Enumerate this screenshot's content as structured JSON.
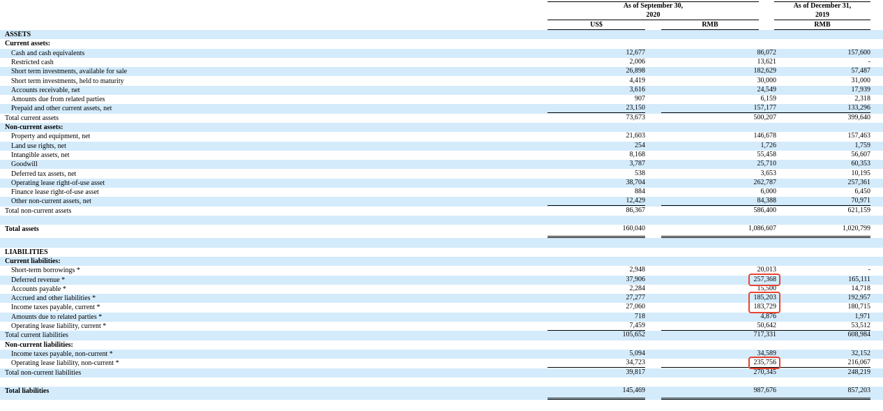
{
  "header": {
    "period1_title": "As of September 30,",
    "period1_year": "2020",
    "period1_col1": "US$",
    "period1_col2": "RMB",
    "period2_title": "As of December 31,",
    "period2_year": "2019",
    "period2_col1": "RMB"
  },
  "sections": [
    {
      "title": "ASSETS",
      "groups": [
        {
          "title": "Current assets:",
          "items": [
            {
              "label": "Cash and cash equivalents",
              "values": [
                "12,677",
                "86,072",
                "157,600"
              ]
            },
            {
              "label": "Restricted cash",
              "values": [
                "2,006",
                "13,621",
                "-"
              ]
            },
            {
              "label": "Short term investments, available for sale",
              "values": [
                "26,898",
                "182,629",
                "57,487"
              ]
            },
            {
              "label": "Short term investments, held to maturity",
              "values": [
                "4,419",
                "30,000",
                "31,000"
              ]
            },
            {
              "label": "Accounts receivable, net",
              "values": [
                "3,616",
                "24,549",
                "17,939"
              ]
            },
            {
              "label": "Amounts due from related parties",
              "values": [
                "907",
                "6,159",
                "2,318"
              ]
            },
            {
              "label": "Prepaid and other current assets, net",
              "values": [
                "23,150",
                "157,177",
                "133,296"
              ]
            }
          ],
          "total": {
            "label": "Total current assets",
            "values": [
              "73,673",
              "500,207",
              "399,640"
            ]
          }
        },
        {
          "title": "Non-current assets:",
          "items": [
            {
              "label": "Property and equipment, net",
              "values": [
                "21,603",
                "146,678",
                "157,463"
              ]
            },
            {
              "label": "Land use rights, net",
              "values": [
                "254",
                "1,726",
                "1,759"
              ]
            },
            {
              "label": "Intangible assets, net",
              "values": [
                "8,168",
                "55,458",
                "56,607"
              ]
            },
            {
              "label": "Goodwill",
              "values": [
                "3,787",
                "25,710",
                "60,353"
              ]
            },
            {
              "label": "Deferred tax assets, net",
              "values": [
                "538",
                "3,653",
                "10,195"
              ]
            },
            {
              "label": "Operating lease right-of-use asset",
              "values": [
                "38,704",
                "262,787",
                "257,361"
              ]
            },
            {
              "label": "Finance lease right-of-use asset",
              "values": [
                "884",
                "6,000",
                "6,450"
              ]
            },
            {
              "label": "Other non-current assets, net",
              "values": [
                "12,429",
                "84,388",
                "70,971"
              ]
            }
          ],
          "total": {
            "label": "Total non-current assets",
            "values": [
              "86,367",
              "586,400",
              "621,159"
            ]
          }
        }
      ],
      "grand_total": {
        "label": "Total assets",
        "values": [
          "160,040",
          "1,086,607",
          "1,020,799"
        ]
      }
    },
    {
      "title": "LIABILITIES",
      "groups": [
        {
          "title": "Current liabilities:",
          "items": [
            {
              "label": "Short-term borrowings *",
              "values": [
                "2,948",
                "20,013",
                "-"
              ]
            },
            {
              "label": "Deferred revenue *",
              "values": [
                "37,906",
                "257,368",
                "165,111"
              ]
            },
            {
              "label": "Accounts payable *",
              "values": [
                "2,284",
                "15,500",
                "14,718"
              ]
            },
            {
              "label": "Accrued and other liabilities *",
              "values": [
                "27,277",
                "185,203",
                "192,957"
              ]
            },
            {
              "label": "Income taxes payable, current *",
              "values": [
                "27,060",
                "183,729",
                "180,715"
              ]
            },
            {
              "label": "Amounts due to related parties *",
              "values": [
                "718",
                "4,876",
                "1,971"
              ]
            },
            {
              "label": "Operating lease liability, current *",
              "values": [
                "7,459",
                "50,642",
                "53,512"
              ]
            }
          ],
          "total": {
            "label": "Total current liabilities",
            "values": [
              "105,652",
              "717,331",
              "608,984"
            ]
          }
        },
        {
          "title": "Non-current liabilities:",
          "items": [
            {
              "label": "Income taxes payable, non-current *",
              "values": [
                "5,094",
                "34,589",
                "32,152"
              ]
            },
            {
              "label": "Operating lease liability, non-current *",
              "values": [
                "34,723",
                "235,756",
                "216,067"
              ]
            }
          ],
          "total": {
            "label": "Total non-current liabilities",
            "values": [
              "39,817",
              "270,345",
              "248,219"
            ]
          }
        }
      ],
      "grand_total": {
        "label": "Total liabilities",
        "values": [
          "145,469",
          "987,676",
          "857,203"
        ]
      }
    }
  ]
}
